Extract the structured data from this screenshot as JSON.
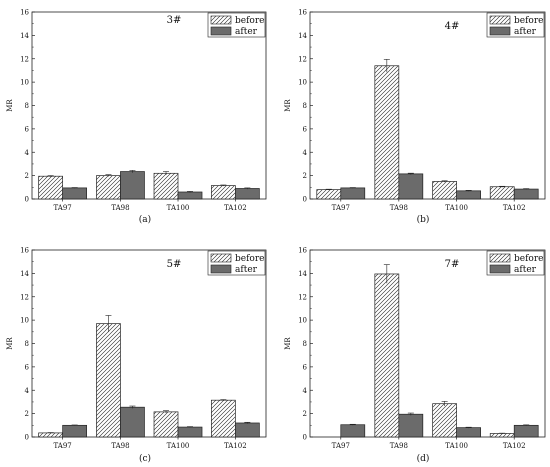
{
  "chart_data": [
    {
      "type": "bar",
      "title": "3#",
      "panel_label": "(a)",
      "ylabel": "MR",
      "ylim": [
        0,
        16
      ],
      "yticks": [
        0,
        2,
        4,
        6,
        8,
        10,
        12,
        14,
        16
      ],
      "categories": [
        "TA97",
        "TA98",
        "TA100",
        "TA102"
      ],
      "legend_position": "top-right",
      "series": [
        {
          "name": "before",
          "pattern": "hatched",
          "values": [
            1.95,
            2.0,
            2.2,
            1.15
          ],
          "errors": [
            0.05,
            0.08,
            0.15,
            0.05
          ]
        },
        {
          "name": "after",
          "color": "#6b6b6b",
          "values": [
            0.95,
            2.35,
            0.6,
            0.9
          ],
          "errors": [
            0.03,
            0.1,
            0.05,
            0.05
          ]
        }
      ]
    },
    {
      "type": "bar",
      "title": "4#",
      "panel_label": "(b)",
      "ylabel": "MR",
      "ylim": [
        0,
        16
      ],
      "yticks": [
        0,
        2,
        4,
        6,
        8,
        10,
        12,
        14,
        16
      ],
      "categories": [
        "TA97",
        "TA98",
        "TA100",
        "TA102"
      ],
      "legend_position": "top-right",
      "series": [
        {
          "name": "before",
          "pattern": "hatched",
          "values": [
            0.8,
            11.4,
            1.5,
            1.05
          ],
          "errors": [
            0.04,
            0.55,
            0.06,
            0.04
          ]
        },
        {
          "name": "after",
          "color": "#6b6b6b",
          "values": [
            0.95,
            2.15,
            0.7,
            0.85
          ],
          "errors": [
            0.03,
            0.06,
            0.04,
            0.04
          ]
        }
      ]
    },
    {
      "type": "bar",
      "title": "5#",
      "panel_label": "(c)",
      "ylabel": "MR",
      "ylim": [
        0,
        16
      ],
      "yticks": [
        0,
        2,
        4,
        6,
        8,
        10,
        12,
        14,
        16
      ],
      "categories": [
        "TA97",
        "TA98",
        "TA100",
        "TA102"
      ],
      "legend_position": "top-right",
      "series": [
        {
          "name": "before",
          "pattern": "hatched",
          "values": [
            0.35,
            9.7,
            2.15,
            3.15
          ],
          "errors": [
            0.03,
            0.7,
            0.1,
            0.05
          ]
        },
        {
          "name": "after",
          "color": "#6b6b6b",
          "values": [
            1.0,
            2.55,
            0.85,
            1.2
          ],
          "errors": [
            0.03,
            0.1,
            0.04,
            0.06
          ]
        }
      ]
    },
    {
      "type": "bar",
      "title": "7#",
      "panel_label": "(d)",
      "ylabel": "MR",
      "ylim": [
        0,
        16
      ],
      "yticks": [
        0,
        2,
        4,
        6,
        8,
        10,
        12,
        14,
        16
      ],
      "categories": [
        "TA97",
        "TA98",
        "TA100",
        "TA102"
      ],
      "legend_position": "top-right",
      "series": [
        {
          "name": "before",
          "pattern": "hatched",
          "values": [
            0.0,
            13.95,
            2.85,
            0.3
          ],
          "errors": [
            0.0,
            0.8,
            0.2,
            0.03
          ]
        },
        {
          "name": "after",
          "color": "#6b6b6b",
          "values": [
            1.05,
            1.95,
            0.8,
            1.0
          ],
          "errors": [
            0.04,
            0.1,
            0.04,
            0.04
          ]
        }
      ]
    }
  ]
}
